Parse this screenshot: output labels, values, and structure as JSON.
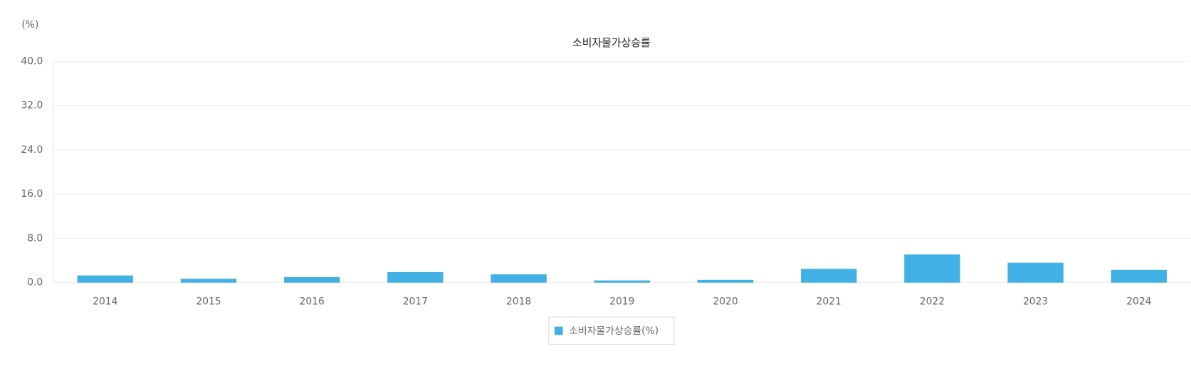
{
  "chart_data": {
    "type": "bar",
    "title": "소비자물가상승률",
    "y_unit": "(%)",
    "categories": [
      "2014",
      "2015",
      "2016",
      "2017",
      "2018",
      "2019",
      "2020",
      "2021",
      "2022",
      "2023",
      "2024"
    ],
    "series": [
      {
        "name": "소비자물가상승률(%)",
        "color": "#41b0e4",
        "values": [
          1.3,
          0.7,
          1.0,
          1.9,
          1.5,
          0.4,
          0.5,
          2.5,
          5.1,
          3.6,
          2.3
        ]
      }
    ],
    "ylim": [
      0,
      40
    ],
    "yticks": [
      {
        "value": 0,
        "label": "0.0"
      },
      {
        "value": 8,
        "label": "8.0"
      },
      {
        "value": 16,
        "label": "16.0"
      },
      {
        "value": 24,
        "label": "24.0"
      },
      {
        "value": 32,
        "label": "32.0"
      },
      {
        "value": 40,
        "label": "40.0"
      }
    ],
    "grid": true
  }
}
